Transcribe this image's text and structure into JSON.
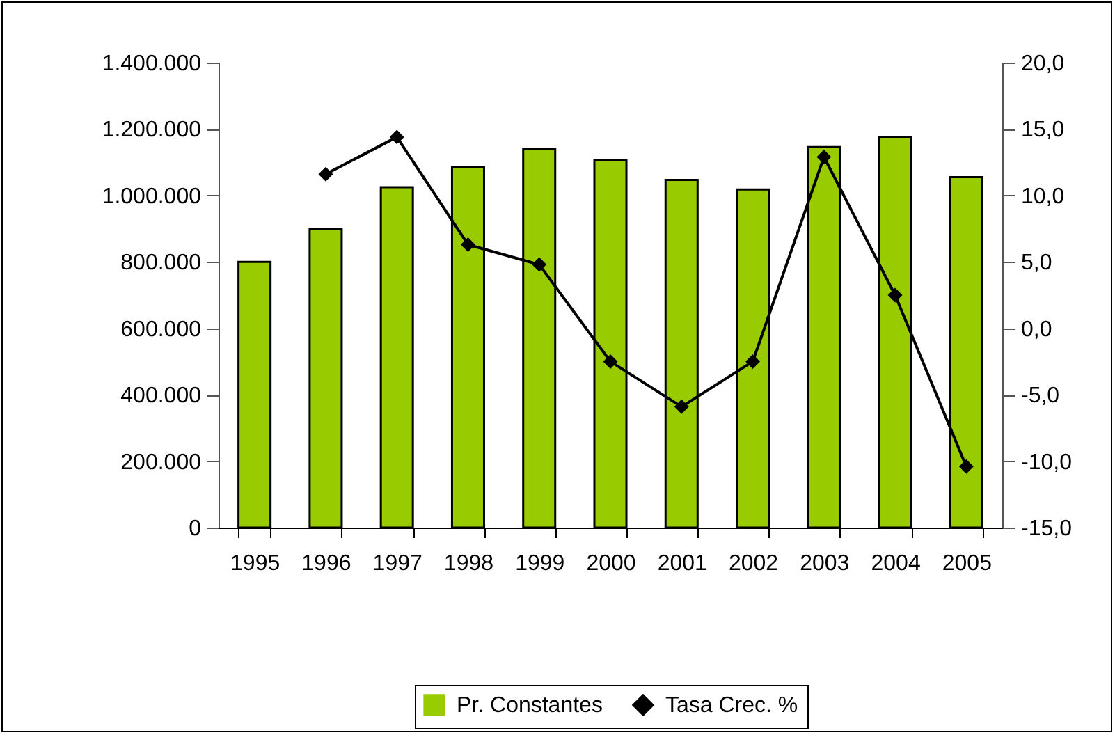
{
  "chart_data": {
    "type": "bar",
    "categories": [
      "1995",
      "1996",
      "1997",
      "1998",
      "1999",
      "2000",
      "2001",
      "2002",
      "2003",
      "2004",
      "2005"
    ],
    "series": [
      {
        "name": "Pr. Constantes",
        "color": "#99cc00",
        "values": [
          800000,
          900000,
          1025000,
          1085000,
          1140000,
          1107000,
          1047000,
          1018000,
          1146000,
          1177000,
          1055000
        ]
      },
      {
        "name": "Tasa Crec. %",
        "type": "line",
        "axis": "y2",
        "color": "#000000",
        "marker": "diamond",
        "values": [
          null,
          11.6,
          14.4,
          6.3,
          4.8,
          -2.5,
          -5.9,
          -2.5,
          12.9,
          2.5,
          -10.4
        ]
      }
    ],
    "ylim": [
      0,
      1400000
    ],
    "yticks": [
      {
        "value": 0,
        "label": "0"
      },
      {
        "value": 200000,
        "label": "200.000"
      },
      {
        "value": 400000,
        "label": "400.000"
      },
      {
        "value": 600000,
        "label": "600.000"
      },
      {
        "value": 800000,
        "label": "800.000"
      },
      {
        "value": 1000000,
        "label": "1.000.000"
      },
      {
        "value": 1200000,
        "label": "1.200.000"
      },
      {
        "value": 1400000,
        "label": "1.400.000"
      }
    ],
    "y2lim": [
      -15,
      20
    ],
    "y2ticks": [
      {
        "value": -15,
        "label": "-15,0"
      },
      {
        "value": -10,
        "label": "-10,0"
      },
      {
        "value": -5,
        "label": "-5,0"
      },
      {
        "value": 0,
        "label": "0,0"
      },
      {
        "value": 5,
        "label": "5,0"
      },
      {
        "value": 10,
        "label": "10,0"
      },
      {
        "value": 15,
        "label": "15,0"
      },
      {
        "value": 20,
        "label": "20,0"
      }
    ],
    "grid": false,
    "legend": "bottom"
  }
}
